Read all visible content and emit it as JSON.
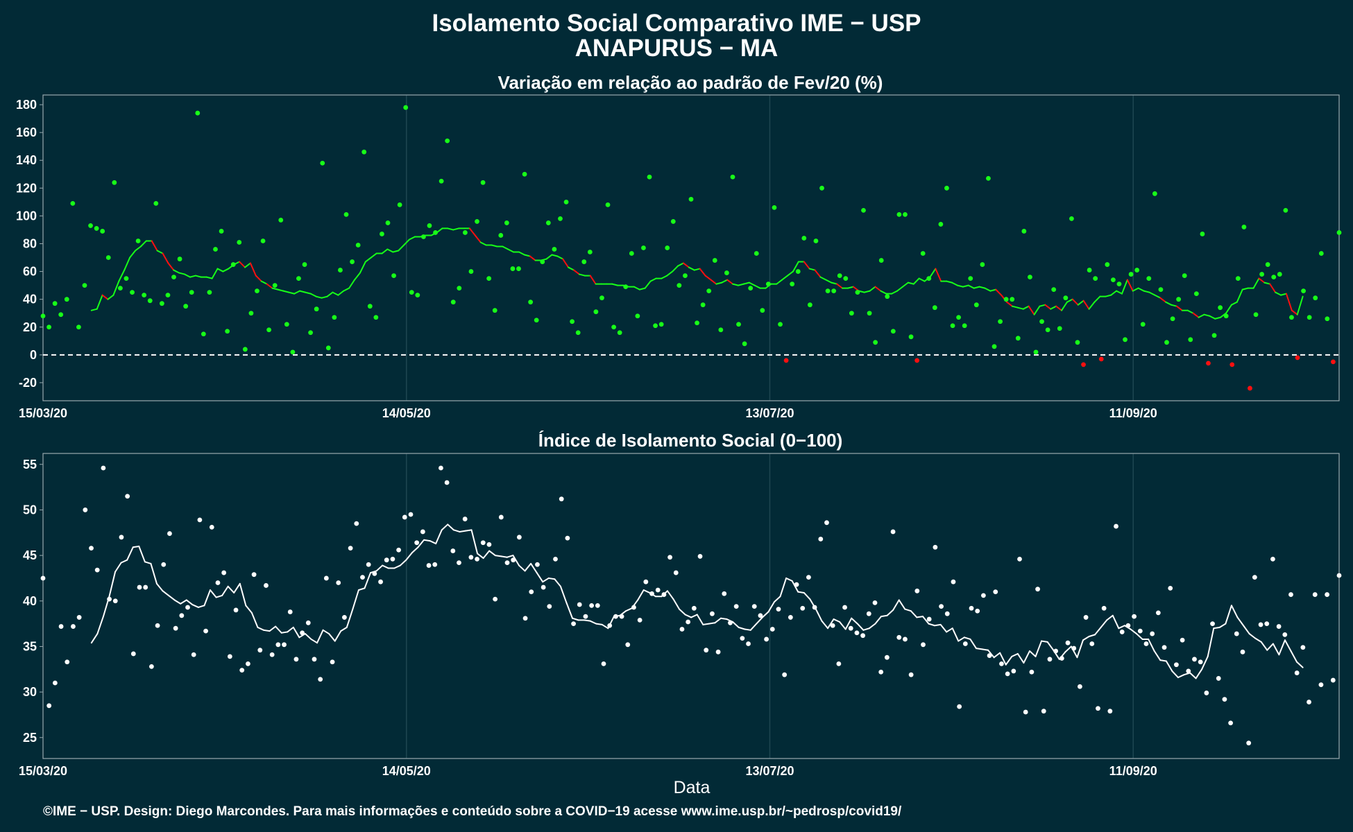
{
  "title_line1": "Isolamento Social Comparativo IME − USP",
  "title_line2": "ANAPURUS − MA",
  "xlabel": "Data",
  "credit": "©IME − USP. Design: Diego Marcondes. Para mais informações e conteúdo sobre a COVID−19 acesse www.ime.usp.br/~pedrosp/covid19/",
  "colors": {
    "background": "#022a36",
    "panel_border": "#9aa8ae",
    "grid": "#1e4651",
    "positive": "#18ff18",
    "negative": "#ff1010",
    "index": "#ffffff"
  },
  "chart_data": [
    {
      "type": "scatter",
      "subtitle": "Variação em relação ao padrão de Fev/20 (%)",
      "x_start": "2020-03-15",
      "x_end": "2020-10-15",
      "x_ticks": [
        "15/03/20",
        "14/05/20",
        "13/07/20",
        "11/09/20"
      ],
      "y_ticks": [
        180,
        160,
        140,
        120,
        100,
        80,
        60,
        40,
        20,
        0,
        -20
      ],
      "ylim": [
        -33,
        187
      ],
      "reference_line": 0,
      "series": [
        {
          "type": "scatter",
          "values": [
            28,
            20,
            37,
            29,
            40,
            109,
            20,
            50,
            93,
            91,
            89,
            70,
            124,
            48,
            55,
            45,
            82,
            43,
            39,
            109,
            37,
            43,
            56,
            69,
            35,
            45,
            174,
            15,
            45,
            76,
            89,
            17,
            65,
            81,
            4,
            30,
            46,
            82,
            18,
            50,
            97,
            22,
            2,
            55,
            65,
            16,
            33,
            138,
            5,
            27,
            61,
            101,
            67,
            79,
            146,
            35,
            27,
            87,
            95,
            57,
            108,
            178,
            45,
            43,
            85,
            93,
            88,
            125,
            154,
            38,
            48,
            88,
            60,
            96,
            124,
            55,
            32,
            86,
            95,
            62,
            62,
            130,
            38,
            25,
            67,
            95,
            76,
            98,
            110,
            24,
            16,
            67,
            74,
            31,
            41,
            108,
            20,
            16,
            49,
            73,
            28,
            77,
            128,
            21,
            22,
            77,
            96,
            50,
            57,
            112,
            23,
            36,
            46,
            68,
            18,
            59,
            128,
            22,
            8,
            48,
            73,
            32,
            51,
            106,
            22,
            -4,
            51,
            60,
            84,
            36,
            82,
            120,
            46,
            46,
            57,
            55,
            30,
            45,
            104,
            30,
            9,
            68,
            42,
            17,
            101,
            101,
            13,
            -4,
            73,
            55,
            34,
            94,
            120,
            21,
            27,
            21,
            55,
            36,
            65,
            127,
            6,
            24,
            40,
            40,
            12,
            89,
            56,
            2,
            24,
            18,
            47,
            19,
            41,
            98,
            9,
            -7,
            61,
            55,
            -3,
            65,
            54,
            51,
            11,
            58,
            61,
            22,
            55,
            116,
            47,
            9,
            26,
            40,
            57,
            11,
            44,
            87,
            -6,
            14,
            34,
            28,
            -7,
            55,
            92,
            -24,
            29,
            58,
            65,
            56,
            58,
            104,
            27,
            -2,
            46,
            27,
            41,
            73,
            26,
            -5,
            88
          ]
        },
        {
          "type": "line",
          "values": [
            32,
            33,
            43,
            40,
            43,
            53,
            61,
            70,
            75,
            78,
            82,
            82,
            75,
            73,
            66,
            61,
            59,
            58,
            56,
            57,
            56,
            56,
            55,
            62,
            60,
            62,
            65,
            67,
            63,
            66,
            57,
            53,
            51,
            48,
            47,
            46,
            45,
            44,
            46,
            45,
            44,
            42,
            41,
            42,
            45,
            43,
            46,
            48,
            54,
            59,
            67,
            70,
            73,
            73,
            76,
            74,
            75,
            79,
            83,
            85,
            85,
            86,
            86,
            88,
            91,
            91,
            90,
            91,
            91,
            91,
            86,
            81,
            79,
            79,
            78,
            78,
            76,
            74,
            74,
            72,
            71,
            68,
            68,
            69,
            72,
            71,
            69,
            63,
            61,
            58,
            57,
            57,
            51,
            51,
            51,
            51,
            50,
            50,
            49,
            49,
            47,
            48,
            53,
            55,
            55,
            57,
            60,
            64,
            66,
            63,
            61,
            62,
            57,
            54,
            51,
            52,
            54,
            51,
            50,
            51,
            52,
            50,
            48,
            48,
            51,
            51,
            54,
            57,
            60,
            67,
            67,
            62,
            61,
            56,
            54,
            52,
            51,
            48,
            48,
            49,
            46,
            45,
            46,
            49,
            46,
            44,
            44,
            46,
            49,
            52,
            51,
            55,
            53,
            56,
            62,
            53,
            53,
            52,
            50,
            49,
            50,
            48,
            49,
            48,
            46,
            47,
            43,
            38,
            35,
            34,
            33,
            35,
            29,
            35,
            36,
            33,
            35,
            32,
            38,
            40,
            36,
            39,
            33,
            38,
            42,
            42,
            43,
            46,
            44,
            54,
            46,
            48,
            46,
            45,
            43,
            41,
            38,
            36,
            35,
            32,
            32,
            30,
            27,
            29,
            28,
            26,
            27,
            30,
            36,
            38,
            47,
            48,
            48,
            55,
            52,
            51,
            45,
            43,
            44,
            32,
            29,
            42
          ]
        }
      ]
    },
    {
      "type": "scatter",
      "subtitle": "Índice de Isolamento Social (0−100)",
      "x_start": "2020-03-15",
      "x_end": "2020-10-15",
      "x_ticks": [
        "15/03/20",
        "14/05/20",
        "13/07/20",
        "11/09/20"
      ],
      "y_ticks": [
        55,
        50,
        45,
        40,
        35,
        30,
        25
      ],
      "ylim": [
        22.7,
        56.2
      ],
      "series": [
        {
          "type": "scatter",
          "values": [
            42.5,
            28.5,
            31.0,
            37.2,
            33.3,
            37.2,
            38.2,
            50.0,
            45.8,
            43.4,
            54.6,
            40.2,
            40.0,
            47.0,
            51.5,
            34.2,
            41.5,
            41.5,
            32.8,
            37.3,
            44.0,
            47.4,
            37.0,
            38.4,
            39.3,
            34.1,
            48.9,
            36.7,
            48.1,
            42.0,
            43.1,
            33.9,
            39.0,
            32.4,
            33.1,
            42.9,
            34.6,
            41.7,
            34.1,
            35.2,
            35.2,
            38.8,
            33.6,
            36.5,
            37.6,
            33.6,
            31.4,
            42.5,
            33.3,
            42.0,
            38.2,
            45.8,
            48.5,
            42.6,
            44.0,
            43.0,
            42.1,
            44.5,
            44.6,
            45.6,
            49.2,
            49.5,
            46.4,
            47.6,
            43.9,
            44.0,
            54.6,
            53.0,
            45.5,
            44.2,
            49.0,
            44.8,
            44.6,
            46.4,
            46.2,
            40.2,
            49.2,
            44.2,
            44.5,
            47.0,
            38.1,
            41.0,
            44.0,
            41.5,
            39.4,
            44.6,
            51.2,
            46.9,
            37.5,
            39.6,
            38.3,
            39.5,
            39.5,
            33.1,
            37.3,
            38.3,
            38.3,
            35.2,
            39.3,
            37.9,
            42.1,
            40.8,
            41.2,
            40.7,
            44.8,
            43.1,
            36.9,
            37.7,
            39.2,
            44.9,
            34.6,
            38.6,
            34.4,
            40.8,
            37.6,
            39.4,
            35.9,
            35.3,
            39.4,
            38.4,
            35.8,
            36.9,
            39.1,
            31.9,
            38.2,
            41.8,
            39.2,
            42.6,
            39.3,
            46.8,
            48.6,
            37.3,
            33.1,
            39.3,
            37.0,
            36.5,
            36.2,
            38.6,
            39.8,
            32.2,
            33.8,
            47.6,
            36.0,
            35.8,
            31.9,
            41.1,
            35.2,
            38.0,
            45.9,
            39.4,
            38.6,
            42.1,
            28.4,
            35.3,
            39.2,
            38.9,
            40.6,
            34.0,
            41.0,
            33.1,
            32.0,
            32.3,
            44.6,
            27.8,
            32.2,
            41.3,
            27.9,
            33.6,
            34.5,
            33.7,
            35.4,
            34.8,
            30.6,
            38.2,
            35.3,
            28.2,
            39.2,
            27.9,
            48.2,
            36.6,
            37.3,
            38.3,
            36.7,
            35.3,
            36.4,
            38.7,
            34.9,
            41.4,
            33.0,
            35.7,
            32.3,
            33.6,
            33.3,
            29.9,
            37.5,
            31.5,
            29.2,
            26.6,
            36.4,
            34.4,
            24.4,
            42.6,
            37.4,
            37.5,
            44.6,
            37.2,
            36.3,
            40.7,
            32.1,
            34.9,
            28.9,
            40.7,
            30.8,
            40.7,
            31.3,
            42.8
          ]
        },
        {
          "type": "line",
          "values": [
            35.4,
            36.4,
            38.3,
            40.5,
            43.2,
            44.2,
            44.5,
            45.9,
            46.0,
            44.3,
            44.1,
            41.9,
            41.1,
            40.6,
            40.1,
            39.7,
            40.1,
            39.6,
            39.3,
            39.5,
            41.2,
            40.4,
            40.6,
            41.6,
            40.9,
            41.9,
            39.5,
            38.7,
            37.1,
            36.8,
            36.7,
            37.2,
            36.5,
            36.6,
            37.1,
            36.0,
            36.4,
            35.8,
            35.4,
            36.8,
            36.4,
            35.6,
            36.7,
            37.1,
            39.1,
            41.2,
            41.4,
            43.1,
            43.3,
            43.9,
            43.6,
            43.6,
            43.9,
            44.5,
            45.3,
            45.9,
            46.7,
            46.6,
            46.3,
            47.8,
            48.4,
            47.8,
            47.6,
            47.7,
            47.8,
            45.2,
            44.7,
            45.5,
            45.0,
            44.9,
            44.8,
            45.0,
            43.9,
            43.3,
            44.1,
            43.1,
            42.1,
            42.5,
            42.4,
            41.6,
            39.8,
            38.1,
            37.9,
            37.9,
            37.8,
            37.5,
            37.4,
            37.0,
            38.3,
            38.4,
            38.9,
            39.2,
            40.1,
            41.2,
            40.9,
            40.5,
            40.5,
            41.1,
            40.2,
            39.1,
            38.5,
            38.2,
            38.5,
            37.4,
            37.5,
            37.6,
            38.1,
            38.0,
            37.7,
            37.1,
            36.9,
            36.8,
            37.5,
            38.2,
            38.8,
            39.9,
            40.5,
            42.5,
            42.2,
            41.0,
            40.9,
            40.2,
            39.1,
            37.8,
            37.0,
            38.0,
            37.7,
            36.9,
            38.1,
            37.5,
            36.8,
            37.0,
            37.5,
            38.3,
            38.4,
            39.0,
            40.1,
            39.1,
            38.9,
            38.2,
            38.3,
            37.5,
            37.3,
            37.4,
            36.6,
            37.0,
            35.6,
            36.0,
            35.8,
            34.8,
            34.7,
            34.6,
            33.8,
            34.3,
            33.0,
            33.9,
            34.2,
            33.2,
            34.5,
            33.9,
            35.6,
            35.5,
            34.6,
            33.6,
            34.4,
            35.0,
            33.8,
            35.7,
            36.1,
            36.3,
            37.1,
            37.9,
            38.4,
            37.0,
            37.3,
            36.9,
            36.4,
            35.8,
            35.8,
            34.5,
            33.5,
            33.4,
            32.3,
            31.6,
            31.9,
            32.1,
            31.5,
            32.5,
            33.9,
            37.0,
            37.1,
            37.5,
            39.5,
            38.2,
            37.3,
            36.4,
            35.9,
            35.5,
            34.6,
            35.3,
            34.1,
            35.7,
            34.5,
            33.3,
            32.7
          ]
        }
      ]
    }
  ]
}
